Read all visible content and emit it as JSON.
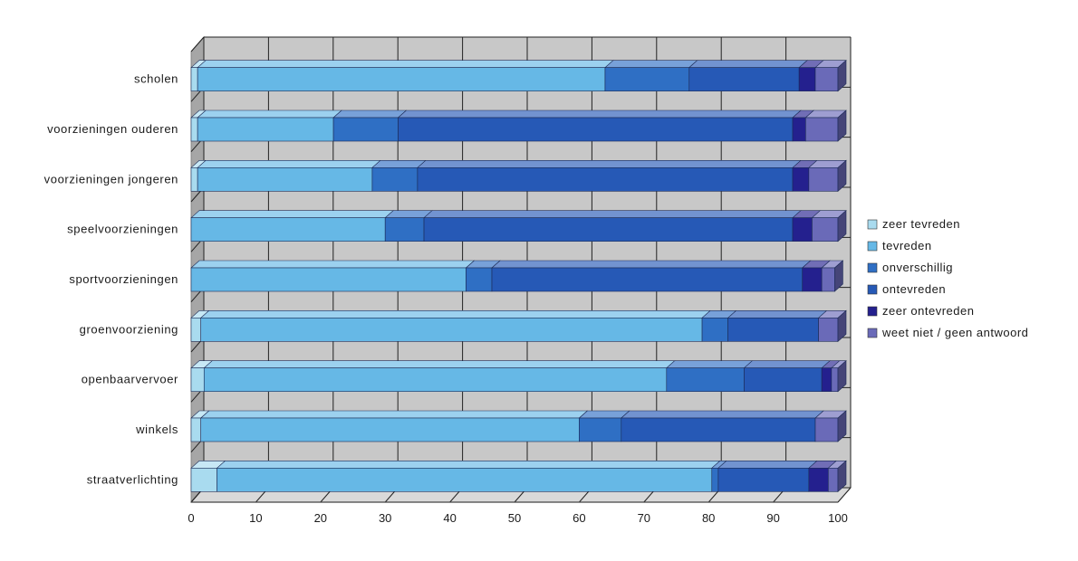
{
  "chart_data": {
    "type": "bar",
    "orientation": "horizontal",
    "stacked": true,
    "three_d": true,
    "categories": [
      "scholen",
      "voorzieningen ouderen",
      "voorzieningen jongeren",
      "speelvoorzieningen",
      "sportvoorzieningen",
      "groenvoorziening",
      "openbaarvervoer",
      "winkels",
      "straatverlichting"
    ],
    "series": [
      {
        "name": "zeer tevreden",
        "color": "#a9dbef",
        "values": [
          1,
          1,
          1,
          0,
          0,
          1.5,
          2,
          1.5,
          4
        ]
      },
      {
        "name": "tevreden",
        "color": "#66b8e6",
        "values": [
          63,
          21,
          27,
          30,
          42.5,
          77.5,
          71.5,
          58.5,
          76.5
        ]
      },
      {
        "name": "onverschillig",
        "color": "#2f6fc4",
        "values": [
          13,
          10,
          7,
          6,
          4,
          4,
          12,
          6.5,
          1
        ]
      },
      {
        "name": "ontevreden",
        "color": "#2659b6",
        "values": [
          17,
          61,
          58,
          57,
          48,
          14,
          12,
          30,
          14
        ]
      },
      {
        "name": "zeer ontevreden",
        "color": "#24208e",
        "values": [
          2.5,
          2,
          2.5,
          3,
          3,
          0,
          1.5,
          0,
          3
        ]
      },
      {
        "name": "weet niet / geen antwoord",
        "color": "#6a6ab8",
        "values": [
          3.5,
          5,
          4.5,
          4,
          2,
          3,
          1,
          3.5,
          1.5
        ]
      }
    ],
    "xlim": [
      0,
      100
    ],
    "xticks": [
      0,
      10,
      20,
      30,
      40,
      50,
      60,
      70,
      80,
      90,
      100
    ],
    "grid": true,
    "legend": {
      "placement": "right",
      "entries": [
        "zeer tevreden",
        "tevreden",
        "onverschillig",
        "ontevreden",
        "zeer ontevreden",
        "weet niet / geen antwoord"
      ]
    },
    "wall_color": "#c8c8c8",
    "floor_color": "#d9d9d9"
  }
}
